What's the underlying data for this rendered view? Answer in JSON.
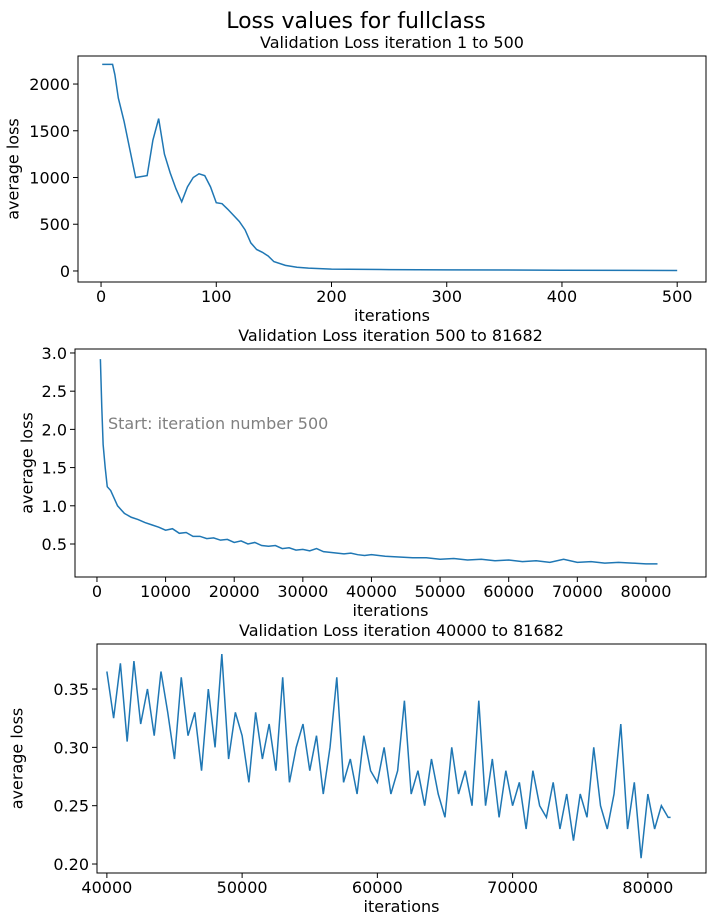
{
  "title": "Loss values for fullclass",
  "chart_data": [
    {
      "type": "line",
      "title": "Validation Loss iteration 1 to 500",
      "xlabel": "iterations",
      "ylabel": "average loss",
      "xlim": [
        -20,
        525
      ],
      "ylim": [
        -118,
        2300
      ],
      "xticks": [
        0,
        100,
        200,
        300,
        400,
        500
      ],
      "yticks": [
        0,
        500,
        1000,
        1500,
        2000
      ],
      "series": [
        {
          "color": "#1f77b4",
          "x": [
            1,
            10,
            12,
            15,
            20,
            25,
            30,
            40,
            45,
            50,
            55,
            60,
            65,
            70,
            75,
            80,
            85,
            90,
            95,
            100,
            105,
            110,
            120,
            125,
            130,
            135,
            140,
            145,
            150,
            160,
            170,
            180,
            200,
            250,
            300,
            400,
            500
          ],
          "values": [
            2210,
            2210,
            2100,
            1850,
            1600,
            1300,
            1000,
            1020,
            1400,
            1630,
            1250,
            1050,
            880,
            740,
            900,
            1000,
            1040,
            1020,
            900,
            730,
            720,
            660,
            530,
            440,
            300,
            230,
            200,
            160,
            100,
            60,
            40,
            30,
            20,
            15,
            12,
            8,
            5
          ]
        }
      ]
    },
    {
      "type": "line",
      "title": "Validation Loss iteration 500 to 81682",
      "xlabel": "iterations",
      "ylabel": "average loss",
      "annotation": "Start: iteration number 500",
      "xlim": [
        -3200,
        88750
      ],
      "ylim": [
        0.068,
        3.052
      ],
      "xticks": [
        0,
        10000,
        20000,
        30000,
        40000,
        50000,
        60000,
        70000,
        80000
      ],
      "yticks": [
        0.5,
        {
          "value": 1,
          "label": "1.0"
        },
        1.5,
        {
          "value": 2,
          "label": "2.0"
        },
        2.5,
        {
          "value": 3,
          "label": "3.0"
        }
      ],
      "series": [
        {
          "color": "#1f77b4",
          "x": [
            500,
            700,
            900,
            1200,
            1500,
            2000,
            2500,
            3000,
            3500,
            4000,
            5000,
            6000,
            7000,
            8000,
            9000,
            10000,
            11000,
            12000,
            13000,
            14000,
            15000,
            16000,
            17000,
            18000,
            19000,
            20000,
            21000,
            22000,
            23000,
            24000,
            25000,
            26000,
            27000,
            28000,
            29000,
            30000,
            31000,
            32000,
            33000,
            34000,
            35000,
            36000,
            37000,
            38000,
            39000,
            40000,
            42000,
            44000,
            46000,
            48000,
            50000,
            52000,
            54000,
            56000,
            58000,
            60000,
            62000,
            64000,
            66000,
            68000,
            70000,
            72000,
            74000,
            76000,
            78000,
            80000,
            81682
          ],
          "values": [
            2.92,
            2.3,
            1.8,
            1.5,
            1.25,
            1.2,
            1.1,
            1.0,
            0.95,
            0.9,
            0.85,
            0.82,
            0.78,
            0.75,
            0.72,
            0.68,
            0.7,
            0.64,
            0.65,
            0.6,
            0.6,
            0.57,
            0.58,
            0.55,
            0.56,
            0.52,
            0.54,
            0.5,
            0.52,
            0.48,
            0.47,
            0.48,
            0.44,
            0.45,
            0.42,
            0.43,
            0.41,
            0.44,
            0.4,
            0.39,
            0.38,
            0.37,
            0.38,
            0.36,
            0.35,
            0.36,
            0.34,
            0.33,
            0.32,
            0.32,
            0.3,
            0.31,
            0.29,
            0.3,
            0.28,
            0.29,
            0.27,
            0.28,
            0.26,
            0.3,
            0.26,
            0.27,
            0.25,
            0.26,
            0.25,
            0.24,
            0.24
          ]
        }
      ]
    },
    {
      "type": "line",
      "title": "Validation Loss iteration 40000 to 81682",
      "xlabel": "iterations",
      "ylabel": "average loss",
      "xlim": [
        39270,
        84300
      ],
      "ylim": [
        0.1923,
        0.3886
      ],
      "xticks": [
        40000,
        50000,
        60000,
        70000,
        80000
      ],
      "yticks": [
        {
          "value": 0.2,
          "label": "0.20"
        },
        0.25,
        {
          "value": 0.3,
          "label": "0.30"
        },
        0.35
      ],
      "series": [
        {
          "color": "#1f77b4",
          "x": [
            40000,
            40500,
            41000,
            41500,
            42000,
            42500,
            43000,
            43500,
            44000,
            44500,
            45000,
            45500,
            46000,
            46500,
            47000,
            47500,
            48000,
            48500,
            49000,
            49500,
            50000,
            50500,
            51000,
            51500,
            52000,
            52500,
            53000,
            53500,
            54000,
            54500,
            55000,
            55500,
            56000,
            56500,
            57000,
            57500,
            58000,
            58500,
            59000,
            59500,
            60000,
            60500,
            61000,
            61500,
            62000,
            62500,
            63000,
            63500,
            64000,
            64500,
            65000,
            65500,
            66000,
            66500,
            67000,
            67500,
            68000,
            68500,
            69000,
            69500,
            70000,
            70500,
            71000,
            71500,
            72000,
            72500,
            73000,
            73500,
            74000,
            74500,
            75000,
            75500,
            76000,
            76500,
            77000,
            77500,
            78000,
            78500,
            79000,
            79500,
            80000,
            80500,
            81000,
            81500,
            81682
          ],
          "values": [
            0.365,
            0.325,
            0.372,
            0.305,
            0.374,
            0.32,
            0.35,
            0.31,
            0.365,
            0.33,
            0.29,
            0.36,
            0.31,
            0.33,
            0.28,
            0.35,
            0.3,
            0.38,
            0.29,
            0.33,
            0.31,
            0.27,
            0.33,
            0.29,
            0.32,
            0.28,
            0.36,
            0.27,
            0.3,
            0.32,
            0.28,
            0.31,
            0.26,
            0.3,
            0.36,
            0.27,
            0.29,
            0.26,
            0.31,
            0.28,
            0.27,
            0.3,
            0.26,
            0.28,
            0.34,
            0.26,
            0.28,
            0.25,
            0.29,
            0.26,
            0.24,
            0.3,
            0.26,
            0.28,
            0.25,
            0.34,
            0.25,
            0.29,
            0.24,
            0.28,
            0.25,
            0.27,
            0.23,
            0.28,
            0.25,
            0.24,
            0.27,
            0.23,
            0.26,
            0.22,
            0.26,
            0.24,
            0.3,
            0.25,
            0.23,
            0.26,
            0.32,
            0.23,
            0.27,
            0.205,
            0.26,
            0.23,
            0.25,
            0.24,
            0.24
          ]
        }
      ]
    }
  ]
}
